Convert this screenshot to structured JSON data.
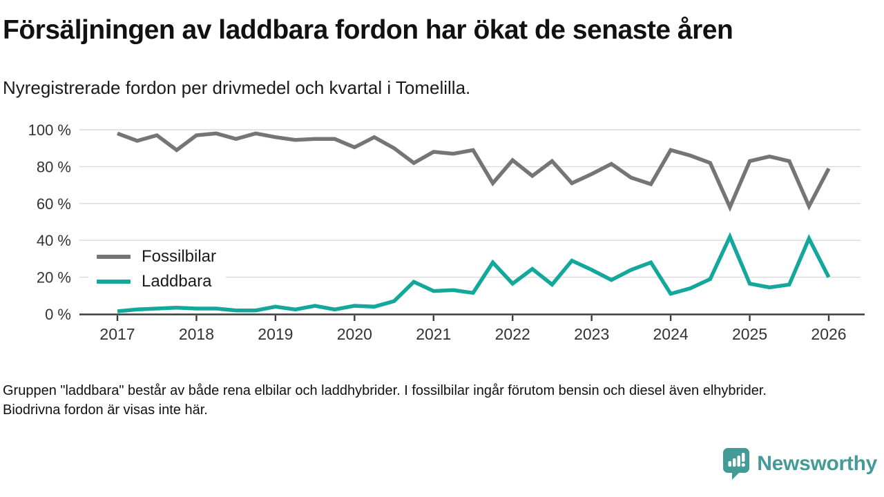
{
  "chart_data": {
    "type": "line",
    "title": "Försäljningen av laddbara fordon har ökat de senaste åren",
    "subtitle": "Nyregistrerade fordon per drivmedel och kvartal i Tomelilla.",
    "x_unit": "quarter",
    "x_start": "2017 Q1",
    "x_end": "2026 Q1",
    "x_tick_labels": [
      "2017",
      "2018",
      "2019",
      "2020",
      "2021",
      "2022",
      "2023",
      "2024",
      "2025",
      "2026"
    ],
    "y_ticks": [
      0,
      20,
      40,
      60,
      80,
      100
    ],
    "y_tick_suffix": " %",
    "ylim": [
      0,
      100
    ],
    "grid": true,
    "legend_position": "inside-left",
    "series": [
      {
        "name": "Fossilbilar",
        "color": "#757578",
        "values": [
          98,
          94,
          97,
          89,
          97,
          98,
          95,
          98,
          96,
          94.5,
          95,
          95,
          90.5,
          96,
          90,
          82,
          88,
          87,
          89,
          71,
          83.5,
          75,
          83,
          71,
          76,
          81.5,
          74,
          70.5,
          89,
          86,
          82,
          58,
          83,
          85.5,
          83,
          58.5,
          79
        ]
      },
      {
        "name": "Laddbara",
        "color": "#14a79b",
        "values": [
          1.5,
          2.5,
          3,
          3.5,
          3,
          3,
          2,
          2,
          4,
          2.5,
          4.5,
          2.5,
          4.5,
          4,
          7,
          17.5,
          12.5,
          13,
          11.5,
          28,
          16.5,
          24.5,
          16,
          29,
          24,
          18.5,
          24,
          28,
          11,
          14,
          19,
          42,
          16.5,
          14.5,
          16,
          41,
          20
        ]
      }
    ],
    "axis_color": "#3a3a3a",
    "gridline_color": "#dadada",
    "tick_label_color": "#333333"
  },
  "footnote": "Gruppen \"laddbara\" består av både rena elbilar och laddhybrider. I fossilbilar ingår förutom bensin och diesel även elhybrider. Biodrivna fordon är visas inte här.",
  "branding": {
    "logo_text": "Newsworthy",
    "logo_color": "#449a96",
    "logo_icon": "speech-bubble-bar-chart-icon"
  }
}
